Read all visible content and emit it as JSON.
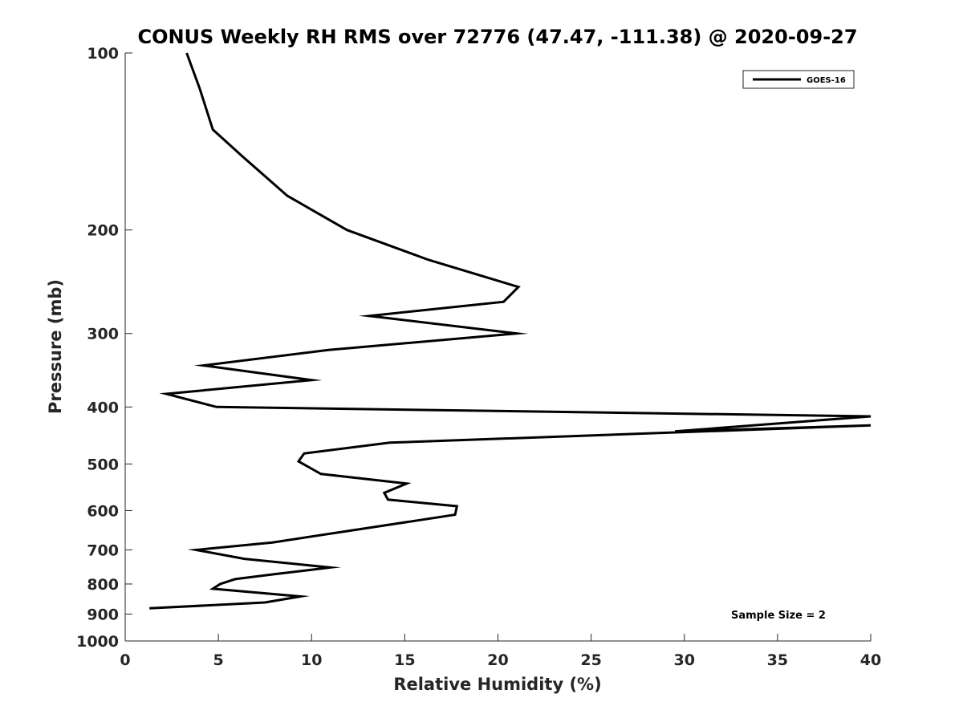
{
  "chart_data": {
    "type": "line",
    "title": "CONUS Weekly RH RMS over 72776 (47.47, -111.38) @ 2020-09-27",
    "xlabel": "Relative Humidity (%)",
    "ylabel": "Pressure (mb)",
    "xlim": [
      0,
      40
    ],
    "ylim": [
      100,
      1000
    ],
    "y_scale": "log",
    "y_reversed": true,
    "x_ticks": [
      "0",
      "5",
      "10",
      "15",
      "20",
      "25",
      "30",
      "35",
      "40"
    ],
    "y_ticks": [
      "100",
      "200",
      "300",
      "400",
      "500",
      "600",
      "700",
      "800",
      "900",
      "1000"
    ],
    "grid": false,
    "legend_position": "top-right",
    "series": [
      {
        "name": "GOES-16",
        "color": "#000000",
        "points": [
          [
            3.3,
            100
          ],
          [
            4.0,
            115
          ],
          [
            4.7,
            135
          ],
          [
            6.3,
            150
          ],
          [
            8.7,
            175
          ],
          [
            11.9,
            200
          ],
          [
            16.3,
            225
          ],
          [
            21.1,
            250
          ],
          [
            20.3,
            265
          ],
          [
            13.1,
            280
          ],
          [
            21.0,
            300
          ],
          [
            10.9,
            320
          ],
          [
            4.2,
            340
          ],
          [
            10.0,
            360
          ],
          [
            2.2,
            380
          ],
          [
            4.9,
            400
          ],
          [
            40.0,
            415
          ],
          [
            29.5,
            440
          ],
          [
            40.0,
            430
          ],
          [
            14.2,
            460
          ],
          [
            9.6,
            480
          ],
          [
            9.3,
            495
          ],
          [
            10.5,
            520
          ],
          [
            15.1,
            540
          ],
          [
            13.9,
            560
          ],
          [
            14.1,
            575
          ],
          [
            17.8,
            590
          ],
          [
            17.7,
            610
          ],
          [
            7.9,
            680
          ],
          [
            3.8,
            700
          ],
          [
            6.4,
            725
          ],
          [
            11.0,
            750
          ],
          [
            8.0,
            770
          ],
          [
            5.9,
            785
          ],
          [
            5.1,
            800
          ],
          [
            4.7,
            815
          ],
          [
            9.4,
            840
          ],
          [
            7.5,
            860
          ],
          [
            1.3,
            880
          ]
        ]
      }
    ],
    "annotations": [
      "Sample Size = 2"
    ]
  }
}
